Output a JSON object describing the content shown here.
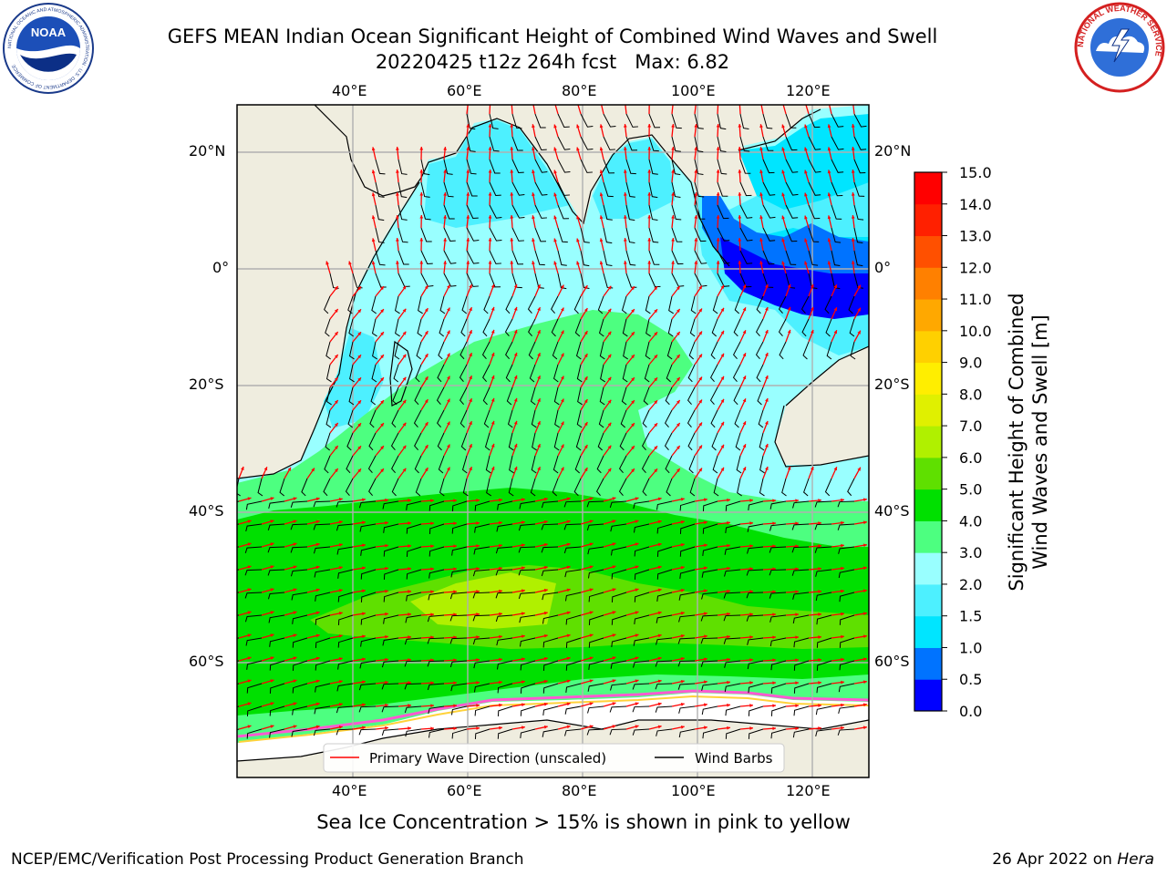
{
  "header": {
    "title_line1": "GEFS MEAN Indian Ocean Significant Height of Combined Wind Waves and Swell",
    "title_line2": "20220425 t12z 264h fcst   Max: 6.82"
  },
  "logos": {
    "noaa_center_text": "NOAA",
    "noaa_ring_text": "NATIONAL OCEANIC AND ATMOSPHERIC ADMINISTRATION · U.S. DEPARTMENT OF COMMERCE",
    "nws_ring_text": "NATIONAL WEATHER SERVICE"
  },
  "map": {
    "lon_range": [
      20,
      130
    ],
    "lat_range": [
      -70,
      28
    ],
    "top_lon_labels": [
      "40°E",
      "60°E",
      "80°E",
      "100°E",
      "120°E"
    ],
    "bottom_lon_labels": [
      "40°E",
      "60°E",
      "80°E",
      "100°E",
      "120°E"
    ],
    "left_lat_labels": [
      "20°N",
      "0°",
      "20°S",
      "40°S",
      "60°S"
    ],
    "right_lat_labels": [
      "20°N",
      "0°",
      "20°S",
      "40°S",
      "60°S"
    ],
    "gridlines": true,
    "land_color": "#efeddf",
    "legend": {
      "placement": "bottom-center",
      "wave_label": "Primary Wave Direction (unscaled)",
      "barb_label": "Wind Barbs",
      "wave_color": "#ff0000",
      "barb_color": "#000000"
    }
  },
  "colorbar": {
    "title_line1": "Significant Height of Combined",
    "title_line2": "Wind Waves and Swell [m]",
    "tick_labels": [
      "0.0",
      "0.5",
      "1.0",
      "1.5",
      "2.0",
      "3.0",
      "4.0",
      "5.0",
      "6.0",
      "7.0",
      "8.0",
      "9.0",
      "10.0",
      "11.0",
      "12.0",
      "13.0",
      "14.0",
      "15.0"
    ],
    "colors": [
      "#0000ff",
      "#0073ff",
      "#00e5ff",
      "#4df0ff",
      "#99ffff",
      "#4dff80",
      "#00e000",
      "#5fe000",
      "#b0f000",
      "#e0f000",
      "#ffee00",
      "#ffd000",
      "#ffa800",
      "#ff8000",
      "#ff5000",
      "#ff2000",
      "#ff0000"
    ]
  },
  "footer": {
    "ice_note": "Sea Ice Concentration > 15% is shown in pink to yellow",
    "left": "NCEP/EMC/Verification Post Processing Product Generation Branch",
    "right_date": "26 Apr 2022 on",
    "right_machine": "Hera"
  }
}
